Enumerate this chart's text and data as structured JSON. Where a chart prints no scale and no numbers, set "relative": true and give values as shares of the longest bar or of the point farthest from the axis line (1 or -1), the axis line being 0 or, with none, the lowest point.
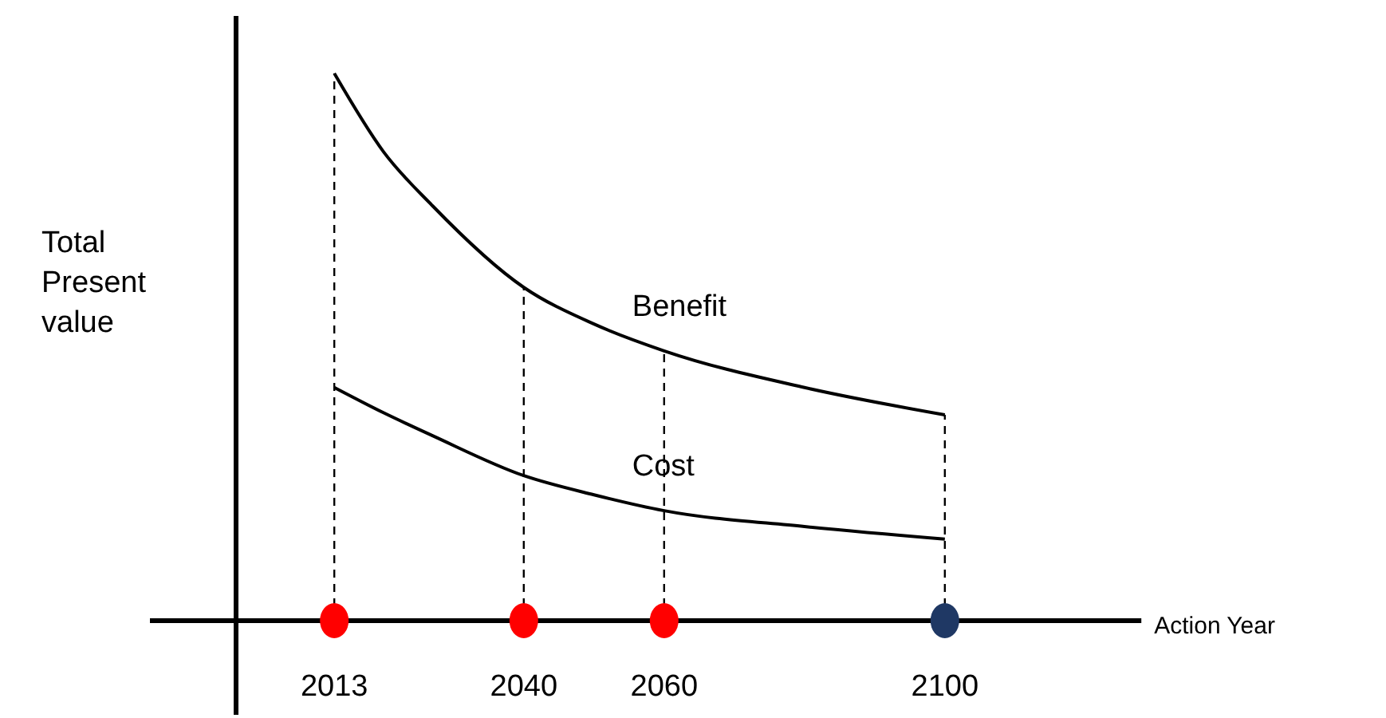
{
  "chart_data": {
    "type": "line",
    "relative": true,
    "xlabel": "Action Year",
    "ylabel": "Total Present value",
    "x": [
      2013,
      2020,
      2027,
      2040,
      2050,
      2060,
      2080,
      2100
    ],
    "xlim": [
      1999,
      2128
    ],
    "xticks": [
      2013,
      2040,
      2060,
      2100
    ],
    "marker": "none",
    "line_style": "solid",
    "ref_lines": [
      {
        "axis": "x",
        "value": 2013,
        "line_style": "dashed"
      },
      {
        "axis": "x",
        "value": 2040,
        "line_style": "dashed"
      },
      {
        "axis": "x",
        "value": 2060,
        "line_style": "dashed"
      },
      {
        "axis": "x",
        "value": 2100,
        "line_style": "dashed"
      }
    ],
    "series": [
      {
        "name": "Benefit",
        "color": "#000000",
        "values": [
          1,
          0.857,
          0.758,
          0.609,
          0.542,
          0.493,
          0.426,
          0.376
        ]
      },
      {
        "name": "Cost",
        "color": "#000000",
        "values": [
          0.426,
          0.38,
          0.338,
          0.265,
          0.23,
          0.201,
          0.172,
          0.149
        ]
      },
      {
        "type": "scatter",
        "marker": "circle",
        "color": "#ff0000",
        "x": [
          2013,
          2040,
          2060
        ],
        "values": [
          0,
          0,
          0
        ]
      },
      {
        "type": "scatter",
        "marker": "circle",
        "color": "#1f3864",
        "x": [
          2100
        ],
        "values": [
          0
        ]
      }
    ]
  }
}
